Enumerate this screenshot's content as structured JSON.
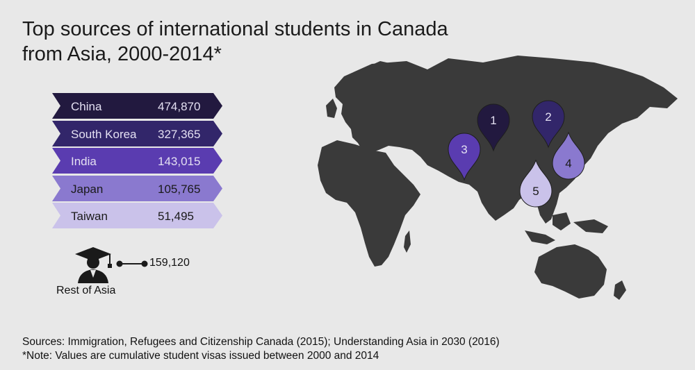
{
  "title_lines": [
    "Top sources of international students in Canada",
    "from Asia, 2000-2014*"
  ],
  "chart_data": {
    "type": "table",
    "title": "Top sources of international students in Canada from Asia, 2000-2014*",
    "rows": [
      {
        "rank": "1",
        "country": "China",
        "value": "474,870",
        "color": "#22193f",
        "text_color": "#e4e0f2"
      },
      {
        "rank": "2",
        "country": "South Korea",
        "value": "327,365",
        "color": "#32266a",
        "text_color": "#e4e0f2"
      },
      {
        "rank": "3",
        "country": "India",
        "value": "143,015",
        "color": "#5a3cb0",
        "text_color": "#e4e0f2"
      },
      {
        "rank": "4",
        "country": "Japan",
        "value": "105,765",
        "color": "#8a79cf",
        "text_color": "#1a1a1a"
      },
      {
        "rank": "5",
        "country": "Taiwan",
        "value": "51,495",
        "color": "#cac2ea",
        "text_color": "#1a1a1a"
      }
    ],
    "rest": {
      "label": "Rest of Asia",
      "value": "159,120"
    }
  },
  "icons": {
    "rest": "graduate-student-icon"
  },
  "colors": {
    "background": "#e8e8e8",
    "map_land": "#3a3a3a"
  },
  "sources_lines": [
    "Sources: Immigration, Refugees and Citizenship Canada (2015); Understanding Asia in 2030 (2016)",
    "*Note: Values are cumulative student visas issued between 2000 and 2014"
  ]
}
